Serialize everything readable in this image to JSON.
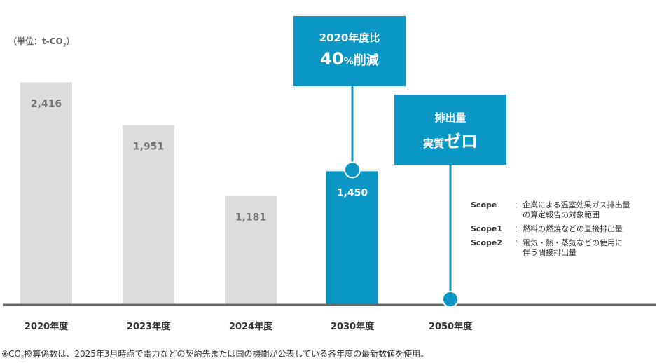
{
  "unit_label": {
    "prefix": "（単位：t-CO",
    "sub": "2",
    "suffix": "）"
  },
  "chart_data": {
    "type": "bar",
    "categories": [
      "2020年度",
      "2023年度",
      "2024年度",
      "2030年度",
      "2050年度"
    ],
    "values": [
      2416,
      1951,
      1181,
      1450,
      0
    ],
    "value_labels": [
      "2,416",
      "1,951",
      "1,181",
      "1,450",
      ""
    ],
    "highlight": [
      false,
      false,
      false,
      true,
      false
    ],
    "ylim": [
      0,
      2700
    ],
    "title": "",
    "xlabel": "",
    "ylabel": "t-CO2",
    "colors": {
      "normal": "#dcdcdc",
      "highlight": "#0a97c6",
      "axis": "#666666",
      "label_normal": "#777777",
      "label_highlight": "#ffffff",
      "category": "#333333"
    }
  },
  "callouts": {
    "target_2030": {
      "line1": "2020年度比",
      "value": "40",
      "pct": "%",
      "suffix": "削減"
    },
    "target_2050": {
      "line1": "排出量",
      "prefix": "実質",
      "big": "ゼロ"
    }
  },
  "scope_notes": [
    {
      "key": "Scope",
      "colon": "：",
      "desc1": "企業による温室効果ガス排出量",
      "desc2": "の算定報告の対象範囲"
    },
    {
      "key": "Scope1",
      "colon": "：",
      "desc1": "燃料の燃焼などの直接排出量",
      "desc2": ""
    },
    {
      "key": "Scope2",
      "colon": "：",
      "desc1": "電気・熱・蒸気などの使用に",
      "desc2": "伴う間接排出量"
    }
  ],
  "footnote": {
    "prefix": "※CO",
    "sub": "2",
    "text": "換算係数は、2025年3月時点で電力などの契約先または国の機関が公表している各年度の最新数値を使用。"
  }
}
